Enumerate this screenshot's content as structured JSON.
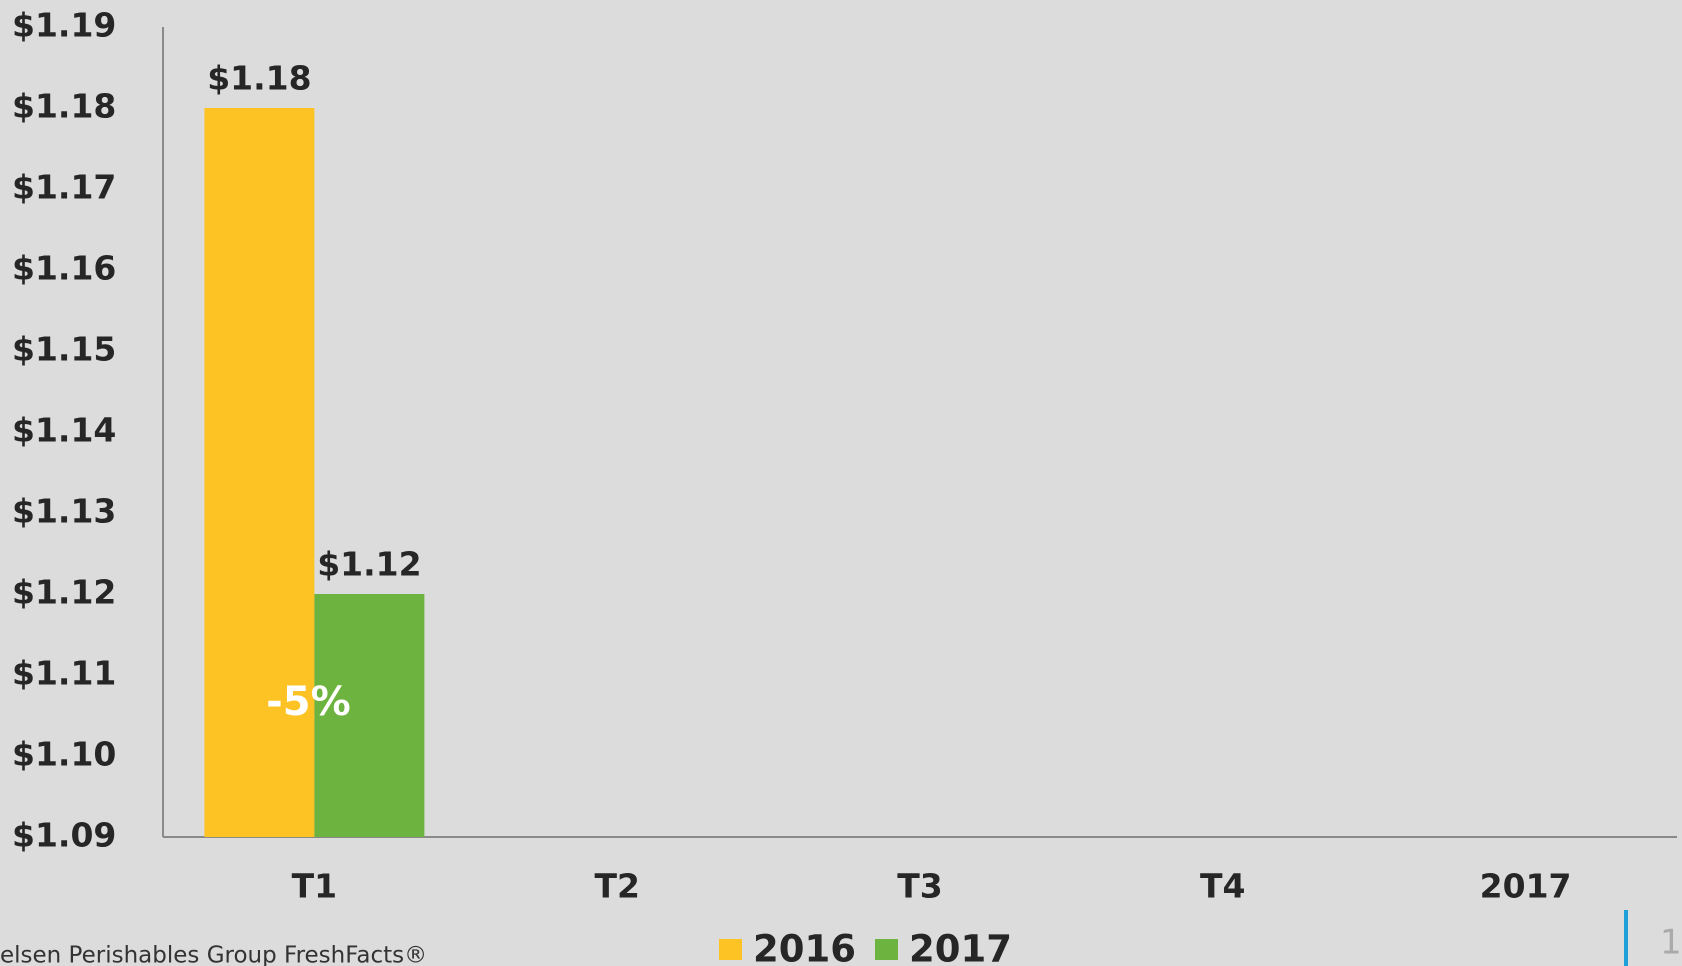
{
  "chart_data": {
    "type": "bar",
    "categories": [
      "T1",
      "T2",
      "T3",
      "T4",
      "2017"
    ],
    "series": [
      {
        "name": "2016",
        "color": "#fdc325",
        "values": [
          1.18,
          null,
          null,
          null,
          null
        ],
        "value_labels": [
          "$1.18",
          null,
          null,
          null,
          null
        ]
      },
      {
        "name": "2017",
        "color": "#6db33f",
        "values": [
          1.12,
          null,
          null,
          null,
          null
        ],
        "value_labels": [
          "$1.12",
          null,
          null,
          null,
          null
        ]
      }
    ],
    "ylim": [
      1.09,
      1.19
    ],
    "yticks": [
      {
        "value": 1.09,
        "label": "$1.09"
      },
      {
        "value": 1.1,
        "label": "$1.10"
      },
      {
        "value": 1.11,
        "label": "$1.11"
      },
      {
        "value": 1.12,
        "label": "$1.12"
      },
      {
        "value": 1.13,
        "label": "$1.13"
      },
      {
        "value": 1.14,
        "label": "$1.14"
      },
      {
        "value": 1.15,
        "label": "$1.15"
      },
      {
        "value": 1.16,
        "label": "$1.16"
      },
      {
        "value": 1.17,
        "label": "$1.17"
      },
      {
        "value": 1.18,
        "label": "$1.18"
      },
      {
        "value": 1.19,
        "label": "$1.19"
      }
    ],
    "grid": false,
    "legend": "bottom",
    "annotations": [
      "-5%"
    ],
    "footer": "elsen Perishables Group FreshFacts®",
    "page_number": "1"
  }
}
